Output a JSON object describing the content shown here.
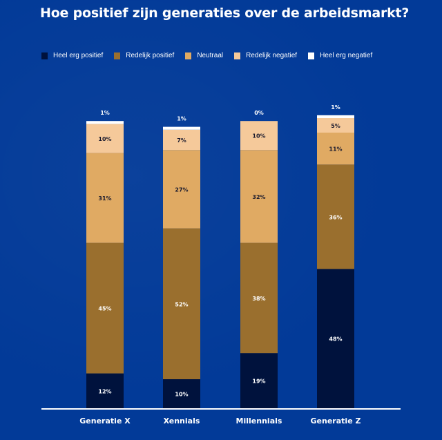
{
  "chart_data": {
    "type": "bar",
    "stacked": true,
    "title": "Hoe positief zijn generaties over de arbeidsmarkt?",
    "xlabel": "",
    "ylabel": "",
    "ylim": [
      0,
      100
    ],
    "legend_position": "top",
    "categories": [
      "Generatie X",
      "Xennials",
      "Millennials",
      "Generatie Z"
    ],
    "series": [
      {
        "name": "Heel erg positief",
        "color": "#00123d",
        "label_color": "#ffffff",
        "values": [
          12,
          10,
          19,
          48
        ]
      },
      {
        "name": "Redelijk positief",
        "color": "#9a6f2e",
        "label_color": "#ffffff",
        "values": [
          45,
          52,
          38,
          36
        ]
      },
      {
        "name": "Neutraal",
        "color": "#e0aa63",
        "label_color": "#1a1a2e",
        "values": [
          31,
          27,
          32,
          11
        ]
      },
      {
        "name": "Redelijk negatief",
        "color": "#f5c99a",
        "label_color": "#1a1a2e",
        "values": [
          10,
          7,
          10,
          5
        ]
      },
      {
        "name": "Heel erg negatief",
        "color": "#ffffff",
        "label_color": "#ffffff",
        "values": [
          1,
          1,
          0,
          1
        ]
      }
    ]
  }
}
